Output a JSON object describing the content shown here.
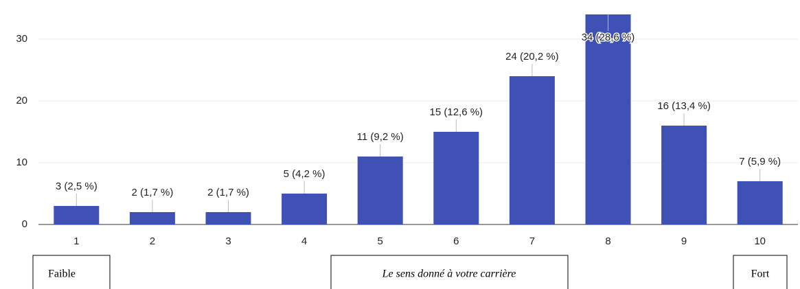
{
  "chart_data": {
    "type": "bar",
    "categories": [
      "1",
      "2",
      "3",
      "4",
      "5",
      "6",
      "7",
      "8",
      "9",
      "10"
    ],
    "values": [
      3,
      2,
      2,
      5,
      11,
      15,
      24,
      34,
      16,
      7
    ],
    "value_labels": [
      "3 (2,5 %)",
      "2 (1,7 %)",
      "2 (1,7 %)",
      "5 (4,2 %)",
      "11 (9,2 %)",
      "15 (12,6 %)",
      "24 (20,2 %)",
      "34 (28,6 %)",
      "16 (13,4 %)",
      "7 (5,9 %)"
    ],
    "color": "#3f51b5",
    "ylim": [
      0,
      35
    ],
    "yticks": [
      0,
      10,
      20,
      30
    ],
    "grid": true,
    "xlabel": "Le sens donné à votre carrière",
    "annotations": [
      "Faible",
      "Fort"
    ]
  }
}
